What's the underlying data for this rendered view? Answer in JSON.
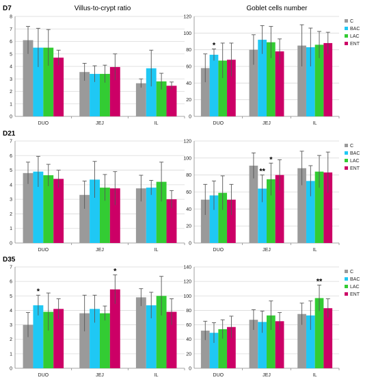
{
  "column_titles": [
    "Villus-to-crypt ratio",
    "Goblet cells number"
  ],
  "row_labels": [
    "D7",
    "D21",
    "D35"
  ],
  "legend": [
    "C",
    "BAC",
    "LAC",
    "ENT"
  ],
  "colors": {
    "C": "#9a9a9a",
    "BAC": "#1fc8f4",
    "LAC": "#33cc33",
    "ENT": "#cc0066",
    "grid": "#d9d9d9",
    "error_bar": "#555555"
  },
  "chart_data": [
    {
      "type": "bar",
      "panel": "D7-villus",
      "categories": [
        "DUO",
        "JEJ",
        "IL"
      ],
      "ylim": [
        0,
        8
      ],
      "yticks": [
        0,
        1,
        2,
        3,
        4,
        5,
        6,
        7,
        8
      ],
      "series": [
        {
          "name": "C",
          "values": [
            6.1,
            3.55,
            2.65
          ],
          "errors": [
            1.1,
            0.7,
            0.35
          ]
        },
        {
          "name": "BAC",
          "values": [
            5.5,
            3.4,
            3.85
          ],
          "errors": [
            1.55,
            0.65,
            1.45
          ]
        },
        {
          "name": "LAC",
          "values": [
            5.5,
            3.4,
            2.8
          ],
          "errors": [
            1.45,
            0.7,
            0.65
          ]
        },
        {
          "name": "ENT",
          "values": [
            4.7,
            3.95,
            2.45
          ],
          "errors": [
            0.6,
            1.05,
            0.3
          ]
        }
      ],
      "annotations": []
    },
    {
      "type": "bar",
      "panel": "D7-goblet",
      "categories": [
        "DUO",
        "JEJ",
        "IL"
      ],
      "ylim": [
        0,
        120
      ],
      "yticks": [
        0,
        20,
        40,
        60,
        80,
        100,
        120
      ],
      "series": [
        {
          "name": "C",
          "values": [
            58,
            80,
            85
          ],
          "errors": [
            17,
            18,
            25
          ]
        },
        {
          "name": "BAC",
          "values": [
            74,
            92,
            83
          ],
          "errors": [
            7,
            17,
            23
          ]
        },
        {
          "name": "LAC",
          "values": [
            67,
            89,
            86
          ],
          "errors": [
            21,
            19,
            16
          ]
        },
        {
          "name": "ENT",
          "values": [
            68,
            78,
            88
          ],
          "errors": [
            20,
            15,
            13
          ]
        }
      ],
      "annotations": [
        {
          "category": "DUO",
          "series": "BAC",
          "text": "*"
        }
      ]
    },
    {
      "type": "bar",
      "panel": "D21-villus",
      "categories": [
        "DUO",
        "JEJ",
        "IL"
      ],
      "ylim": [
        0,
        7
      ],
      "yticks": [
        0,
        1,
        2,
        3,
        4,
        5,
        6,
        7
      ],
      "series": [
        {
          "name": "C",
          "values": [
            4.8,
            3.3,
            3.75
          ],
          "errors": [
            0.75,
            0.95,
            0.9
          ]
        },
        {
          "name": "BAC",
          "values": [
            4.9,
            4.35,
            3.8
          ],
          "errors": [
            1.05,
            1.25,
            0.5
          ]
        },
        {
          "name": "LAC",
          "values": [
            4.65,
            3.8,
            4.2
          ],
          "errors": [
            0.75,
            0.9,
            1.35
          ]
        },
        {
          "name": "ENT",
          "values": [
            4.4,
            3.75,
            3.0
          ],
          "errors": [
            0.6,
            1.15,
            0.6
          ]
        }
      ],
      "annotations": []
    },
    {
      "type": "bar",
      "panel": "D21-goblet",
      "categories": [
        "DUO",
        "JEJ",
        "IL"
      ],
      "ylim": [
        0,
        120
      ],
      "yticks": [
        0,
        20,
        40,
        60,
        80,
        100,
        120
      ],
      "series": [
        {
          "name": "C",
          "values": [
            51,
            91,
            88
          ],
          "errors": [
            18,
            15,
            20
          ]
        },
        {
          "name": "BAC",
          "values": [
            56,
            64,
            73
          ],
          "errors": [
            17,
            16,
            18
          ]
        },
        {
          "name": "LAC",
          "values": [
            59,
            75,
            84
          ],
          "errors": [
            20,
            19,
            19
          ]
        },
        {
          "name": "ENT",
          "values": [
            51,
            80,
            83
          ],
          "errors": [
            18,
            18,
            24
          ]
        }
      ],
      "annotations": [
        {
          "category": "JEJ",
          "series": "BAC",
          "text": "**"
        },
        {
          "category": "JEJ",
          "series": "LAC",
          "text": "*"
        }
      ]
    },
    {
      "type": "bar",
      "panel": "D35-villus",
      "categories": [
        "DUO",
        "JEJ",
        "IL"
      ],
      "ylim": [
        0,
        7
      ],
      "yticks": [
        0,
        1,
        2,
        3,
        4,
        5,
        6,
        7
      ],
      "series": [
        {
          "name": "C",
          "values": [
            3.0,
            3.8,
            4.9
          ],
          "errors": [
            0.85,
            1.25,
            0.6
          ]
        },
        {
          "name": "BAC",
          "values": [
            4.35,
            4.1,
            4.35
          ],
          "errors": [
            0.7,
            0.95,
            0.9
          ]
        },
        {
          "name": "LAC",
          "values": [
            3.9,
            3.8,
            5.0
          ],
          "errors": [
            1.3,
            0.5,
            1.35
          ]
        },
        {
          "name": "ENT",
          "values": [
            4.1,
            5.45,
            3.9
          ],
          "errors": [
            0.7,
            1.0,
            0.9
          ]
        }
      ],
      "annotations": [
        {
          "category": "DUO",
          "series": "BAC",
          "text": "*"
        },
        {
          "category": "JEJ",
          "series": "ENT",
          "text": "*"
        }
      ]
    },
    {
      "type": "bar",
      "panel": "D35-goblet",
      "categories": [
        "DUO",
        "JEJ",
        "IL"
      ],
      "ylim": [
        0,
        140
      ],
      "yticks": [
        0,
        20,
        40,
        60,
        80,
        100,
        120,
        140
      ],
      "series": [
        {
          "name": "C",
          "values": [
            52,
            67,
            75
          ],
          "errors": [
            13,
            14,
            15
          ]
        },
        {
          "name": "BAC",
          "values": [
            49,
            64,
            73
          ],
          "errors": [
            14,
            15,
            20
          ]
        },
        {
          "name": "LAC",
          "values": [
            54,
            73,
            97
          ],
          "errors": [
            13,
            20,
            18
          ]
        },
        {
          "name": "ENT",
          "values": [
            57,
            65,
            83
          ],
          "errors": [
            15,
            12,
            13
          ]
        }
      ],
      "annotations": [
        {
          "category": "IL",
          "series": "LAC",
          "text": "**"
        }
      ]
    }
  ]
}
